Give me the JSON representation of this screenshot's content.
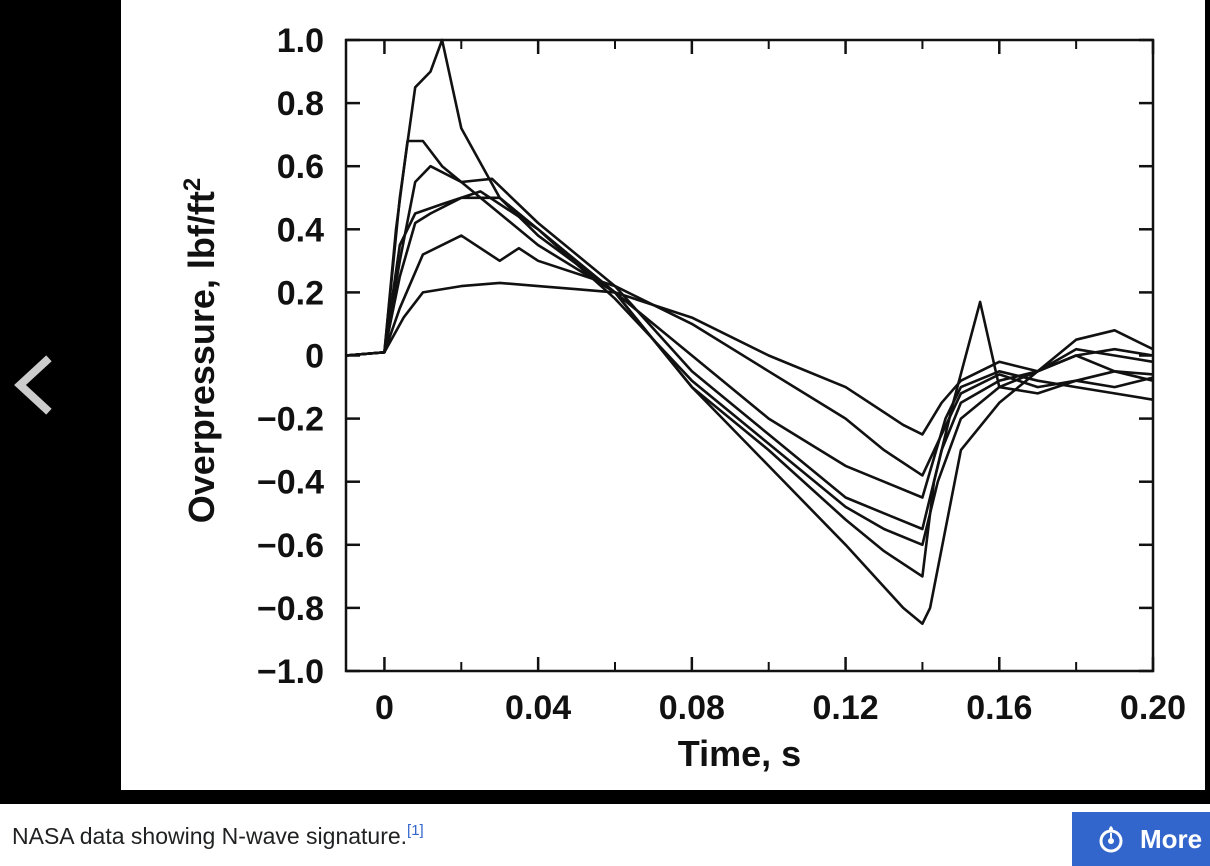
{
  "viewer": {
    "prev_icon": "chevron-left-icon"
  },
  "caption": {
    "text": "NASA data showing N-wave signature.",
    "ref": "[1]"
  },
  "more_button": {
    "icon": "wikimedia-commons-icon",
    "label": "More",
    "color": "#3366cc"
  },
  "chart_data": {
    "type": "line",
    "xlabel": "Time, s",
    "ylabel": "Overpressure, lbf/ft",
    "ylabel_superscript": "2",
    "xlim": [
      -0.01,
      0.2
    ],
    "ylim": [
      -1.0,
      1.0
    ],
    "x_ticks": [
      0,
      0.04,
      0.08,
      0.12,
      0.16,
      0.2
    ],
    "x_tick_labels": [
      "0",
      "0.04",
      "0.08",
      "0.12",
      "0.16",
      "0.20"
    ],
    "y_ticks": [
      1.0,
      0.8,
      0.6,
      0.4,
      0.2,
      0,
      -0.2,
      -0.4,
      -0.6,
      -0.8,
      -1.0
    ],
    "y_tick_labels": [
      "1.0",
      "0.8",
      "0.6",
      "0.4",
      "0.2",
      "0",
      "−0.2",
      "−0.4",
      "−0.6",
      "−0.8",
      "−1.0"
    ],
    "grid": false,
    "series": [
      {
        "x": [
          -0.01,
          0.0,
          0.004,
          0.008,
          0.012,
          0.015,
          0.02,
          0.03,
          0.04,
          0.06,
          0.08,
          0.1,
          0.12,
          0.135,
          0.14,
          0.142,
          0.146,
          0.15,
          0.16,
          0.17,
          0.18,
          0.19,
          0.2
        ],
        "y": [
          0,
          0.01,
          0.5,
          0.85,
          0.9,
          1.0,
          0.72,
          0.5,
          0.4,
          0.2,
          -0.1,
          -0.35,
          -0.6,
          -0.8,
          -0.85,
          -0.8,
          -0.55,
          -0.3,
          -0.15,
          -0.05,
          0.0,
          -0.05,
          -0.08
        ]
      },
      {
        "x": [
          -0.01,
          0.0,
          0.003,
          0.006,
          0.01,
          0.015,
          0.02,
          0.03,
          0.04,
          0.06,
          0.08,
          0.1,
          0.12,
          0.13,
          0.14,
          0.143,
          0.148,
          0.155,
          0.16,
          0.17,
          0.18,
          0.19,
          0.2
        ],
        "y": [
          0,
          0.01,
          0.4,
          0.68,
          0.68,
          0.6,
          0.55,
          0.45,
          0.35,
          0.2,
          -0.1,
          -0.3,
          -0.52,
          -0.62,
          -0.7,
          -0.4,
          -0.15,
          0.17,
          -0.1,
          -0.05,
          0.0,
          0.02,
          0.0
        ]
      },
      {
        "x": [
          -0.01,
          0.0,
          0.004,
          0.008,
          0.012,
          0.02,
          0.028,
          0.04,
          0.06,
          0.08,
          0.1,
          0.12,
          0.13,
          0.14,
          0.145,
          0.15,
          0.16,
          0.17,
          0.18,
          0.19,
          0.2
        ],
        "y": [
          0,
          0.01,
          0.3,
          0.55,
          0.6,
          0.55,
          0.56,
          0.42,
          0.22,
          -0.05,
          -0.25,
          -0.45,
          -0.5,
          -0.55,
          -0.3,
          -0.15,
          -0.08,
          -0.05,
          0.05,
          0.08,
          0.02
        ]
      },
      {
        "x": [
          -0.01,
          0.0,
          0.004,
          0.008,
          0.012,
          0.02,
          0.03,
          0.04,
          0.06,
          0.08,
          0.1,
          0.12,
          0.13,
          0.14,
          0.146,
          0.15,
          0.16,
          0.17,
          0.18,
          0.19,
          0.2
        ],
        "y": [
          0,
          0.01,
          0.25,
          0.42,
          0.45,
          0.5,
          0.5,
          0.38,
          0.2,
          0.0,
          -0.2,
          -0.35,
          -0.4,
          -0.45,
          -0.2,
          -0.1,
          -0.05,
          -0.08,
          -0.1,
          -0.12,
          -0.14
        ]
      },
      {
        "x": [
          -0.01,
          0.0,
          0.004,
          0.01,
          0.02,
          0.03,
          0.035,
          0.04,
          0.06,
          0.08,
          0.1,
          0.12,
          0.13,
          0.14,
          0.145,
          0.15,
          0.16,
          0.17,
          0.18,
          0.19,
          0.2
        ],
        "y": [
          0,
          0.01,
          0.15,
          0.32,
          0.38,
          0.3,
          0.34,
          0.3,
          0.22,
          0.1,
          -0.05,
          -0.2,
          -0.3,
          -0.38,
          -0.25,
          -0.12,
          -0.06,
          -0.1,
          -0.08,
          -0.1,
          -0.07
        ]
      },
      {
        "x": [
          -0.01,
          0.0,
          0.005,
          0.01,
          0.02,
          0.03,
          0.04,
          0.05,
          0.06,
          0.08,
          0.1,
          0.12,
          0.135,
          0.14,
          0.145,
          0.15,
          0.16,
          0.17,
          0.18,
          0.19,
          0.2
        ],
        "y": [
          0,
          0.01,
          0.12,
          0.2,
          0.22,
          0.23,
          0.22,
          0.21,
          0.2,
          0.12,
          0.0,
          -0.1,
          -0.22,
          -0.25,
          -0.15,
          -0.08,
          -0.02,
          -0.05,
          0.02,
          0.0,
          -0.02
        ]
      },
      {
        "x": [
          -0.01,
          0.0,
          0.004,
          0.008,
          0.015,
          0.025,
          0.04,
          0.06,
          0.08,
          0.1,
          0.12,
          0.13,
          0.14,
          0.144,
          0.15,
          0.16,
          0.17,
          0.18,
          0.19,
          0.2
        ],
        "y": [
          0,
          0.01,
          0.35,
          0.45,
          0.48,
          0.52,
          0.4,
          0.18,
          -0.08,
          -0.28,
          -0.48,
          -0.55,
          -0.6,
          -0.4,
          -0.2,
          -0.1,
          -0.12,
          -0.08,
          -0.05,
          -0.06
        ]
      }
    ]
  }
}
